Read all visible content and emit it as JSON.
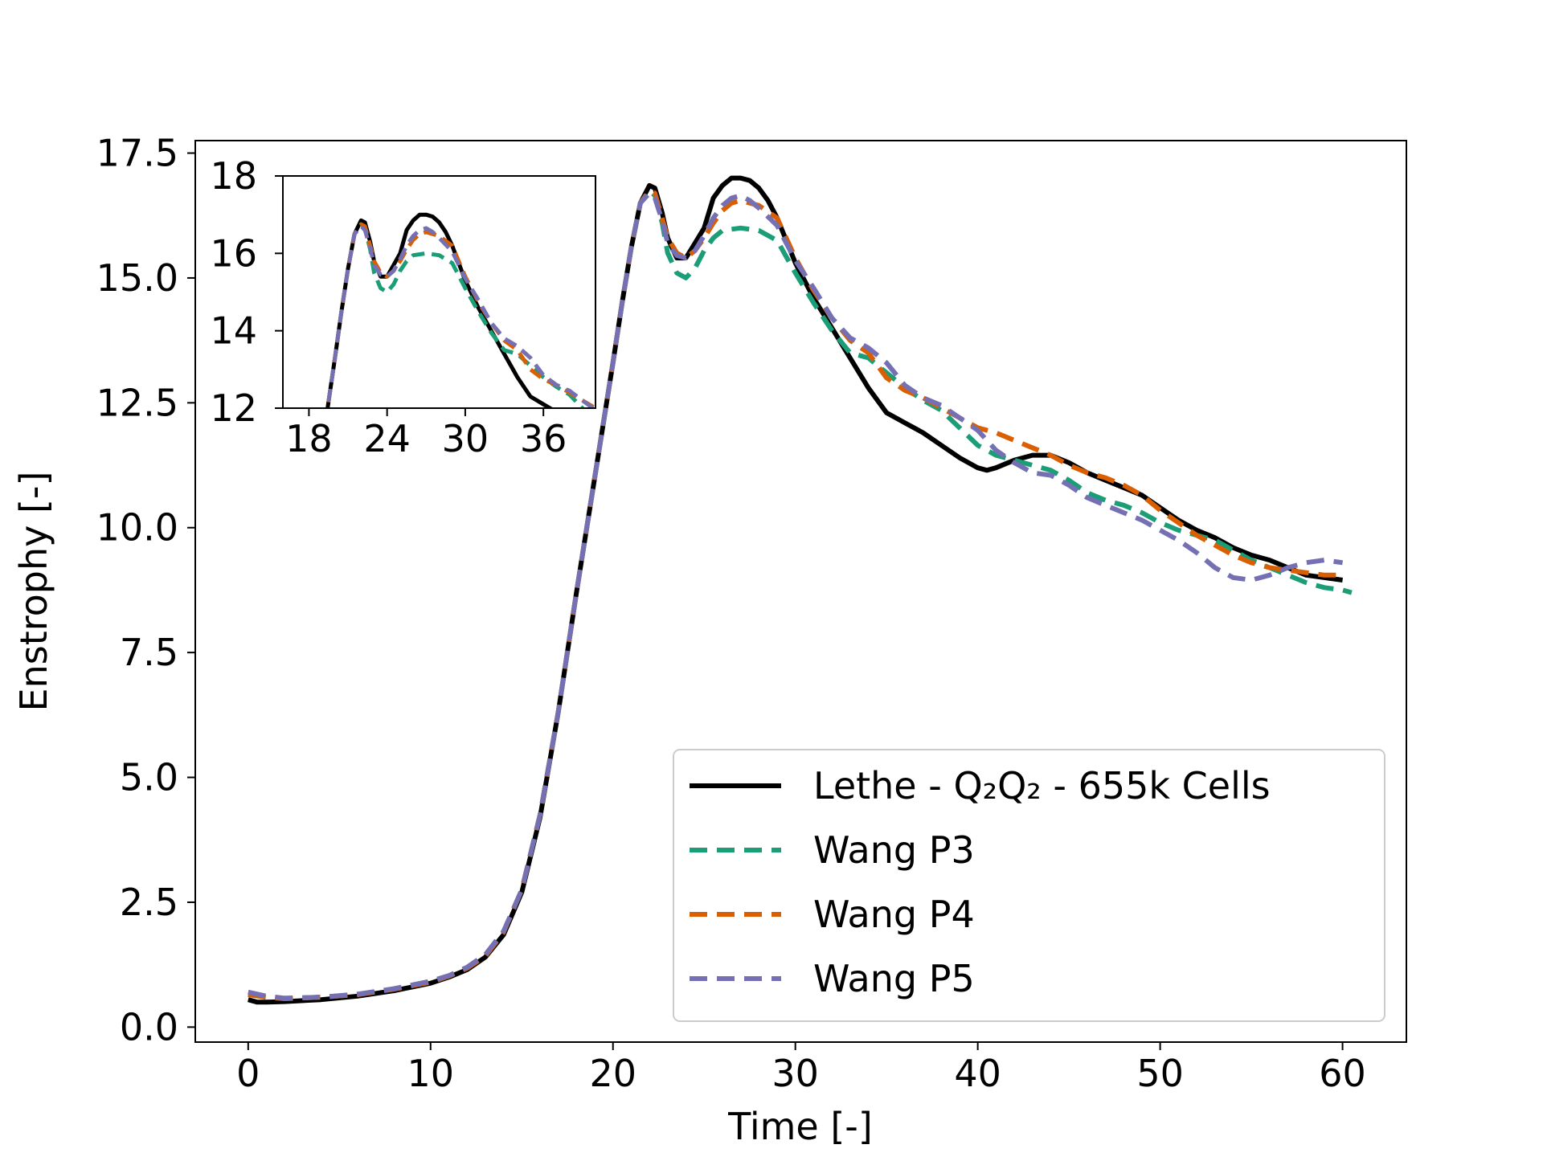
{
  "chart_data": {
    "type": "line",
    "title": "",
    "xlabel": "Time [-]",
    "ylabel": "Enstrophy [-]",
    "xlim": [
      -2.9,
      63.5
    ],
    "ylim": [
      -0.3,
      17.75
    ],
    "xticks": [
      0,
      10,
      20,
      30,
      40,
      50,
      60
    ],
    "xtick_labels": [
      "0",
      "10",
      "20",
      "30",
      "40",
      "50",
      "60"
    ],
    "yticks": [
      0.0,
      2.5,
      5.0,
      7.5,
      10.0,
      12.5,
      15.0,
      17.5
    ],
    "ytick_labels": [
      "0.0",
      "2.5",
      "5.0",
      "7.5",
      "10.0",
      "12.5",
      "15.0",
      "17.5"
    ],
    "grid": false,
    "legend": {
      "position": "lower-right",
      "entries": [
        {
          "label": "Lethe - Q₂Q₂ - 655k Cells",
          "color": "#000000",
          "style": "solid"
        },
        {
          "label": "Wang P3",
          "color": "#1b9e77",
          "style": "dashed"
        },
        {
          "label": "Wang P4",
          "color": "#d95f02",
          "style": "dashed"
        },
        {
          "label": "Wang P5",
          "color": "#7570b3",
          "style": "dashed"
        }
      ]
    },
    "series": [
      {
        "name": "Lethe - Q₂Q₂ - 655k Cells",
        "color": "#000000",
        "dash": "solid",
        "x": [
          0,
          0.5,
          1,
          2,
          4,
          6,
          8,
          10,
          11,
          12,
          13,
          14,
          15,
          16,
          17,
          18,
          19,
          20,
          20.5,
          21,
          21.5,
          22,
          22.3,
          22.7,
          23,
          23.5,
          24,
          24.5,
          25,
          25.5,
          26,
          26.5,
          27,
          27.5,
          28,
          28.5,
          29,
          30,
          31,
          32,
          33,
          34,
          35,
          36,
          37,
          38,
          39,
          40,
          40.5,
          41,
          42,
          43,
          44,
          45,
          46,
          47,
          48,
          49,
          50,
          51,
          52,
          53,
          54,
          55,
          56,
          57,
          58,
          59,
          60
        ],
        "y": [
          0.55,
          0.5,
          0.5,
          0.51,
          0.55,
          0.62,
          0.73,
          0.88,
          1.0,
          1.15,
          1.4,
          1.85,
          2.7,
          4.2,
          6.3,
          8.7,
          11.0,
          13.3,
          14.5,
          15.6,
          16.5,
          16.85,
          16.8,
          16.3,
          15.8,
          15.4,
          15.4,
          15.7,
          16.0,
          16.6,
          16.85,
          17.0,
          17.0,
          16.95,
          16.8,
          16.55,
          16.2,
          15.3,
          14.6,
          14.0,
          13.4,
          12.8,
          12.3,
          12.1,
          11.9,
          11.65,
          11.4,
          11.2,
          11.15,
          11.2,
          11.35,
          11.45,
          11.45,
          11.3,
          11.1,
          10.95,
          10.8,
          10.65,
          10.4,
          10.15,
          9.95,
          9.8,
          9.6,
          9.45,
          9.35,
          9.2,
          9.05,
          9.0,
          8.95
        ]
      },
      {
        "name": "Wang P3",
        "color": "#1b9e77",
        "dash": "dashed",
        "x": [
          0,
          1,
          2,
          4,
          6,
          8,
          10,
          11,
          12,
          13,
          14,
          15,
          16,
          17,
          18,
          19,
          20,
          20.5,
          21,
          21.5,
          22,
          22.3,
          22.7,
          23,
          23.5,
          24,
          24.5,
          25,
          25.5,
          26,
          27,
          28,
          29,
          30,
          31,
          32,
          33,
          34,
          35,
          36,
          37,
          38,
          39,
          40,
          41,
          42,
          43,
          44,
          45,
          46,
          47,
          48,
          49,
          50,
          51,
          52,
          53,
          54,
          55,
          56,
          57,
          58,
          59,
          60,
          60.5
        ],
        "y": [
          0.65,
          0.6,
          0.57,
          0.6,
          0.65,
          0.76,
          0.9,
          1.02,
          1.18,
          1.42,
          1.9,
          2.75,
          4.25,
          6.3,
          8.7,
          11.0,
          13.3,
          14.5,
          15.6,
          16.5,
          16.75,
          16.65,
          16.1,
          15.5,
          15.1,
          15.0,
          15.2,
          15.55,
          15.8,
          15.95,
          16.0,
          15.95,
          15.75,
          15.1,
          14.5,
          13.95,
          13.5,
          13.4,
          13.1,
          12.8,
          12.55,
          12.35,
          12.0,
          11.65,
          11.45,
          11.35,
          11.25,
          11.15,
          10.95,
          10.7,
          10.55,
          10.45,
          10.3,
          10.1,
          9.95,
          9.85,
          9.75,
          9.55,
          9.35,
          9.2,
          9.05,
          8.9,
          8.8,
          8.75,
          8.7
        ]
      },
      {
        "name": "Wang P4",
        "color": "#d95f02",
        "dash": "dashed",
        "x": [
          0,
          1,
          2,
          4,
          6,
          8,
          10,
          11,
          12,
          13,
          14,
          15,
          16,
          17,
          18,
          19,
          20,
          20.5,
          21,
          21.5,
          22,
          22.3,
          22.7,
          23,
          23.5,
          24,
          24.5,
          25,
          25.5,
          26,
          26.5,
          27,
          27.5,
          28,
          29,
          30,
          31,
          32,
          33,
          34,
          35,
          36,
          37,
          38,
          39,
          40,
          41,
          42,
          43,
          44,
          45,
          46,
          47,
          48,
          49,
          50,
          51,
          52,
          53,
          54,
          55,
          56,
          57,
          58,
          59,
          60
        ],
        "y": [
          0.65,
          0.6,
          0.57,
          0.6,
          0.65,
          0.76,
          0.9,
          1.02,
          1.18,
          1.42,
          1.9,
          2.75,
          4.25,
          6.3,
          8.7,
          11.0,
          13.3,
          14.5,
          15.6,
          16.5,
          16.75,
          16.7,
          16.2,
          15.8,
          15.5,
          15.4,
          15.55,
          15.8,
          16.1,
          16.35,
          16.5,
          16.55,
          16.5,
          16.45,
          16.2,
          15.4,
          14.75,
          14.2,
          13.75,
          13.5,
          13.0,
          12.75,
          12.6,
          12.4,
          12.2,
          12.0,
          11.9,
          11.75,
          11.6,
          11.45,
          11.25,
          11.1,
          11.0,
          10.85,
          10.65,
          10.35,
          10.1,
          9.85,
          9.65,
          9.45,
          9.3,
          9.2,
          9.15,
          9.1,
          9.05,
          9.05
        ]
      },
      {
        "name": "Wang P5",
        "color": "#7570b3",
        "dash": "dashed",
        "x": [
          0,
          1,
          2,
          4,
          6,
          8,
          10,
          11,
          12,
          13,
          14,
          15,
          16,
          17,
          18,
          19,
          20,
          20.5,
          21,
          21.5,
          22,
          22.3,
          22.7,
          23,
          23.5,
          24,
          24.5,
          25,
          25.5,
          26,
          26.5,
          27,
          27.5,
          28,
          29,
          30,
          31,
          32,
          33,
          34,
          35,
          36,
          37,
          38,
          39,
          40,
          41,
          42,
          43,
          44,
          45,
          46,
          47,
          48,
          49,
          50,
          51,
          52,
          53,
          54,
          55,
          56,
          57,
          58,
          59,
          60
        ],
        "y": [
          0.7,
          0.62,
          0.58,
          0.6,
          0.66,
          0.77,
          0.92,
          1.03,
          1.2,
          1.45,
          1.92,
          2.75,
          4.25,
          6.3,
          8.7,
          11.0,
          13.3,
          14.5,
          15.6,
          16.5,
          16.7,
          16.6,
          16.15,
          15.7,
          15.45,
          15.4,
          15.55,
          15.85,
          16.2,
          16.45,
          16.6,
          16.65,
          16.55,
          16.4,
          16.05,
          15.35,
          14.8,
          14.2,
          13.8,
          13.6,
          13.3,
          12.85,
          12.6,
          12.45,
          12.2,
          11.95,
          11.55,
          11.3,
          11.1,
          11.05,
          10.85,
          10.6,
          10.45,
          10.3,
          10.15,
          9.95,
          9.75,
          9.5,
          9.2,
          9.0,
          8.95,
          9.05,
          9.2,
          9.3,
          9.35,
          9.3
        ]
      }
    ],
    "inset": {
      "xlim": [
        16,
        40
      ],
      "ylim": [
        12,
        18
      ],
      "xticks": [
        18,
        24,
        30,
        36
      ],
      "xtick_labels": [
        "18",
        "24",
        "30",
        "36"
      ],
      "yticks": [
        12,
        14,
        16,
        18
      ],
      "ytick_labels": [
        "12",
        "14",
        "16",
        "18"
      ]
    }
  }
}
